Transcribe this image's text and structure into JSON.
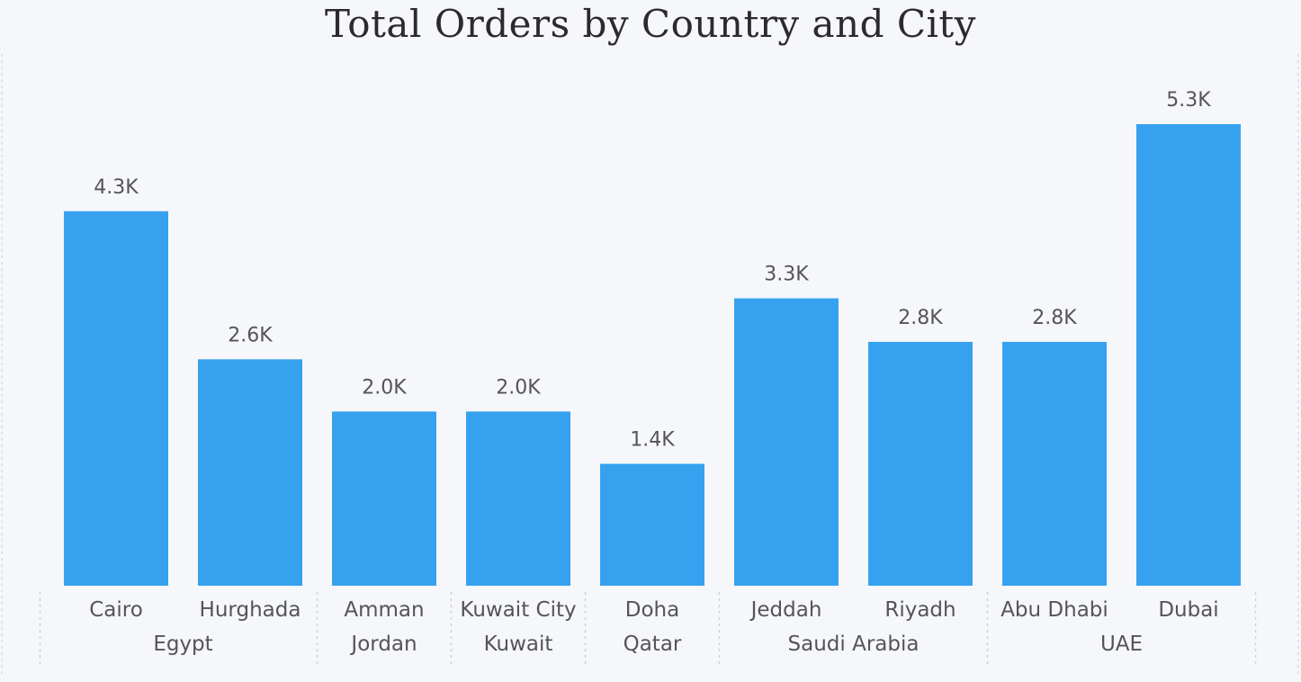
{
  "chart_data": {
    "type": "bar",
    "title": "Total Orders by Country and City",
    "xlabel": "",
    "ylabel": "",
    "ylim": [
      0,
      5300
    ],
    "grid": false,
    "bar_color": "#36a2ef",
    "categories": [
      "Cairo",
      "Hurghada",
      "Amman",
      "Kuwait City",
      "Doha",
      "Jeddah",
      "Riyadh",
      "Abu Dhabi",
      "Dubai"
    ],
    "values": [
      4300,
      2600,
      2000,
      2000,
      1400,
      3300,
      2800,
      2800,
      5300
    ],
    "data_labels": [
      "4.3K",
      "2.6K",
      "2.0K",
      "2.0K",
      "1.4K",
      "3.3K",
      "2.8K",
      "2.8K",
      "5.3K"
    ],
    "groups": [
      {
        "label": "Egypt",
        "categories": [
          "Cairo",
          "Hurghada"
        ]
      },
      {
        "label": "Jordan",
        "categories": [
          "Amman"
        ]
      },
      {
        "label": "Kuwait",
        "categories": [
          "Kuwait City"
        ]
      },
      {
        "label": "Qatar",
        "categories": [
          "Doha"
        ]
      },
      {
        "label": "Saudi Arabia",
        "categories": [
          "Jeddah",
          "Riyadh"
        ]
      },
      {
        "label": "UAE",
        "categories": [
          "Abu Dhabi",
          "Dubai"
        ]
      }
    ]
  }
}
